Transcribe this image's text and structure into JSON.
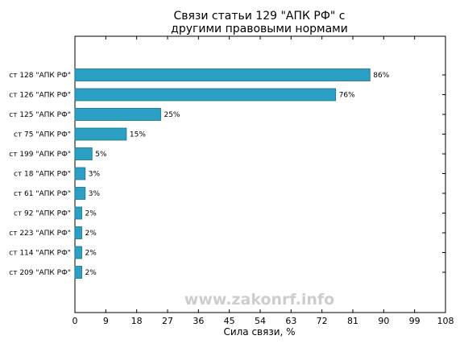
{
  "chart_data": {
    "type": "bar",
    "orientation": "horizontal",
    "title": "Связи статьи 129 \"АПК РФ\" с другими правовыми нормами",
    "title_lines": [
      "Связи статьи 129 \"АПК РФ\" с",
      "другими правовыми нормами"
    ],
    "xlabel": "Сила связи, %",
    "ylabel": "",
    "xlim": [
      0,
      108
    ],
    "xticks": [
      0,
      9,
      18,
      27,
      36,
      45,
      54,
      63,
      72,
      81,
      90,
      99,
      108
    ],
    "grid": false,
    "categories": [
      "ст 128 \"АПК РФ\"",
      "ст 126 \"АПК РФ\"",
      "ст 125 \"АПК РФ\"",
      "ст 75 \"АПК РФ\"",
      "ст 199 \"АПК РФ\"",
      "ст 18 \"АПК РФ\"",
      "ст 61 \"АПК РФ\"",
      "ст 92 \"АПК РФ\"",
      "ст 223 \"АПК РФ\"",
      "ст 114 \"АПК РФ\"",
      "ст 209 \"АПК РФ\""
    ],
    "values": [
      86,
      76,
      25,
      15,
      5,
      3,
      3,
      2,
      2,
      2,
      2
    ],
    "value_labels": [
      "86%",
      "76%",
      "25%",
      "15%",
      "5%",
      "3%",
      "3%",
      "2%",
      "2%",
      "2%",
      "2%"
    ],
    "bar_color": "#2ba0c4",
    "bar_edge_color": "#1a6f88"
  },
  "watermark": {
    "text": "www.zakonrf.info"
  }
}
